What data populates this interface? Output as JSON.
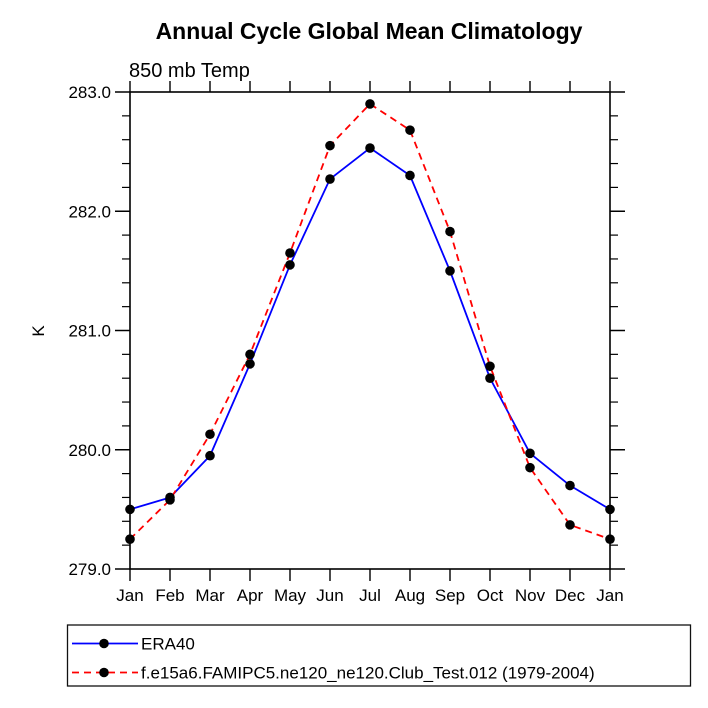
{
  "title": "Annual Cycle Global Mean Climatology",
  "subtitle": "850 mb Temp",
  "ylabel": "K",
  "colors": {
    "era40_line": "#0000ff",
    "model_line": "#ff0000",
    "marker": "#000000",
    "axis": "#000000",
    "background": "#ffffff"
  },
  "legend": {
    "entries": [
      {
        "label": "ERA40",
        "color": "#0000ff",
        "style": "solid",
        "marker": "black-dot"
      },
      {
        "label": "f.e15a6.FAMIPC5.ne120_ne120.Club_Test.012 (1979-2004)",
        "color": "#ff0000",
        "style": "dashed",
        "marker": "black-dot"
      }
    ]
  },
  "chart_data": {
    "type": "line",
    "title": "Annual Cycle Global Mean Climatology",
    "subtitle": "850 mb Temp",
    "xlabel": "",
    "ylabel": "K",
    "categories": [
      "Jan",
      "Feb",
      "Mar",
      "Apr",
      "May",
      "Jun",
      "Jul",
      "Aug",
      "Sep",
      "Oct",
      "Nov",
      "Dec",
      "Jan"
    ],
    "series": [
      {
        "name": "ERA40",
        "color": "#0000ff",
        "line": "solid",
        "marker": "black-dot",
        "values": [
          279.5,
          279.6,
          279.95,
          280.72,
          281.55,
          282.27,
          282.53,
          282.3,
          281.5,
          280.6,
          279.97,
          279.7,
          279.5
        ]
      },
      {
        "name": "f.e15a6.FAMIPC5.ne120_ne120.Club_Test.012 (1979-2004)",
        "color": "#ff0000",
        "line": "dashed",
        "marker": "black-dot",
        "values": [
          279.25,
          279.58,
          280.13,
          280.8,
          281.65,
          282.55,
          282.9,
          282.68,
          281.83,
          280.7,
          279.85,
          279.37,
          279.25
        ]
      }
    ],
    "ylim": [
      279.0,
      283.0
    ],
    "yticks_major": [
      279.0,
      280.0,
      281.0,
      282.0,
      283.0
    ],
    "ytick_labels": [
      "279.0",
      "280.0",
      "281.0",
      "282.0",
      "283.0"
    ],
    "yminor_step": 0.2,
    "grid": false,
    "tick_direction": "out",
    "legend_position": "bottom-left-box"
  }
}
